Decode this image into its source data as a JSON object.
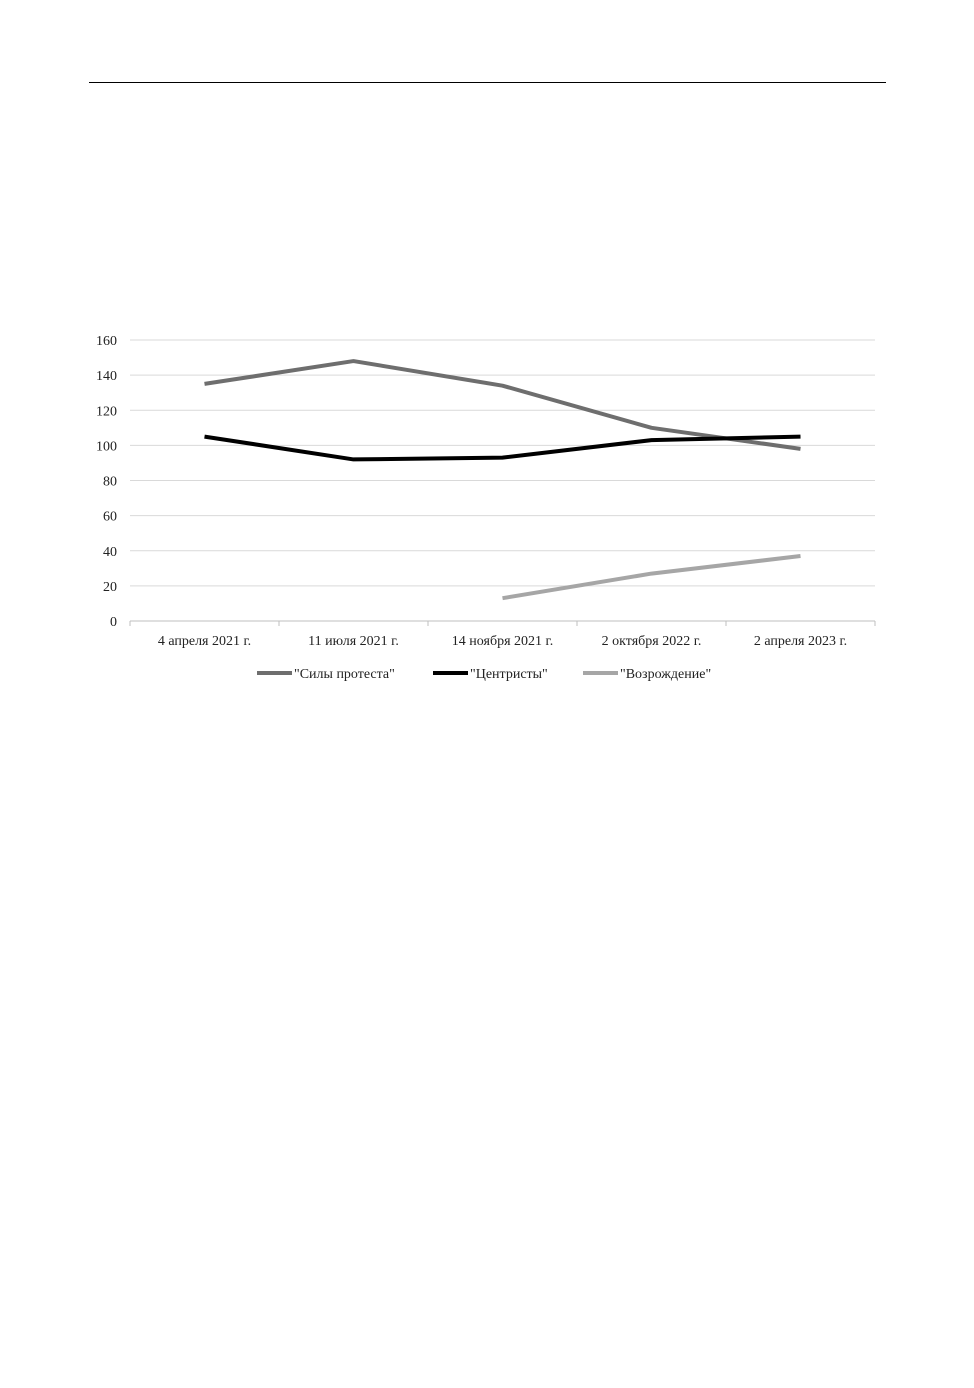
{
  "chart_data": {
    "type": "line",
    "categories": [
      "4 апреля 2021 г.",
      "11 июля 2021 г.",
      "14 ноября 2021 г.",
      "2 октября 2022 г.",
      "2 апреля 2023 г."
    ],
    "ylim": [
      0,
      160
    ],
    "yticks": [
      0,
      20,
      40,
      60,
      80,
      100,
      120,
      140,
      160
    ],
    "grid": true,
    "legend": "bottom",
    "series": [
      {
        "name": "\"Силы протеста\"",
        "color": "#6e6e6e",
        "values": [
          135,
          148,
          134,
          110,
          98
        ]
      },
      {
        "name": "\"Центристы\"",
        "color": "#000000",
        "values": [
          105,
          92,
          93,
          103,
          105
        ]
      },
      {
        "name": "\"Возрождение\"",
        "color": "#a6a6a6",
        "values": [
          null,
          null,
          13,
          27,
          37
        ]
      }
    ]
  }
}
